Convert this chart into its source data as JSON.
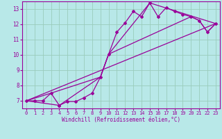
{
  "xlabel": "Windchill (Refroidissement éolien,°C)",
  "bg_color": "#b8e8e8",
  "line_color": "#990099",
  "grid_color": "#99ccbb",
  "xlim": [
    -0.5,
    23.5
  ],
  "ylim": [
    6.5,
    13.5
  ],
  "xticks": [
    0,
    1,
    2,
    3,
    4,
    5,
    6,
    7,
    8,
    9,
    10,
    11,
    12,
    13,
    14,
    15,
    16,
    17,
    18,
    19,
    20,
    21,
    22,
    23
  ],
  "yticks": [
    7,
    8,
    9,
    10,
    11,
    12,
    13
  ],
  "line1_x": [
    0,
    1,
    2,
    3,
    4,
    4,
    5,
    6,
    7,
    8,
    9,
    10,
    11,
    12,
    13,
    14,
    15,
    16,
    17,
    18,
    19,
    20,
    21,
    22,
    23
  ],
  "line1_y": [
    7.0,
    7.0,
    7.0,
    7.5,
    6.7,
    6.7,
    6.95,
    6.95,
    7.2,
    7.5,
    8.55,
    10.05,
    11.5,
    12.1,
    12.85,
    12.5,
    13.4,
    12.5,
    13.1,
    12.85,
    12.65,
    12.5,
    12.25,
    11.5,
    12.05
  ],
  "line2_x": [
    0,
    3,
    9,
    10,
    15,
    23
  ],
  "line2_y": [
    7.0,
    7.5,
    8.55,
    10.05,
    13.4,
    12.05
  ],
  "line3_x": [
    0,
    4,
    9,
    10,
    20,
    21,
    22,
    23
  ],
  "line3_y": [
    7.0,
    6.7,
    8.55,
    10.05,
    12.5,
    12.25,
    11.5,
    12.05
  ]
}
